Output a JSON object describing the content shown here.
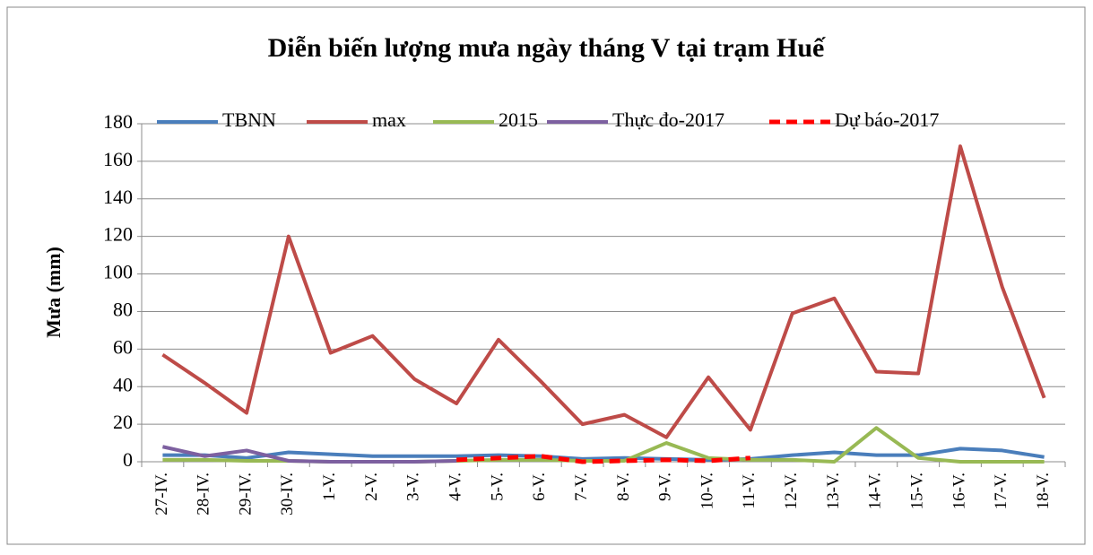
{
  "chart_data": {
    "type": "line",
    "title": "Diễn biến lượng mưa ngày tháng V tại trạm Huế",
    "y_label": "Mưa (mm)",
    "categories": [
      "27-IV.",
      "28-IV.",
      "29-IV.",
      "30-IV.",
      "1-V.",
      "2-V.",
      "3-V.",
      "4-V.",
      "5-V.",
      "6-V.",
      "7-V.",
      "8-V.",
      "9-V.",
      "10-V.",
      "11-V.",
      "12-V.",
      "13-V.",
      "14-V.",
      "15-V.",
      "16-V.",
      "17-V.",
      "18-V."
    ],
    "series": [
      {
        "name": "TBNN",
        "color": "#4a7ebb",
        "values": [
          3.5,
          3.5,
          2,
          5,
          4,
          3,
          3,
          3,
          3.5,
          3,
          1.5,
          2,
          1.5,
          1,
          1.5,
          3.5,
          5,
          3.5,
          3.5,
          7,
          6,
          2.5
        ]
      },
      {
        "name": "max",
        "color": "#be4b48",
        "values": [
          57,
          42,
          26,
          120,
          58,
          67,
          44,
          31,
          65,
          43,
          20,
          25,
          13,
          45,
          17,
          79,
          87,
          48,
          47,
          168,
          93,
          34
        ]
      },
      {
        "name": "2015",
        "color": "#98b954",
        "values": [
          1,
          1,
          0.5,
          0.5,
          0,
          0,
          0,
          0.5,
          1,
          1,
          0.5,
          0.5,
          10,
          2,
          1,
          1,
          0,
          18,
          2,
          0,
          0,
          0
        ]
      },
      {
        "name": "Thực đo-2017",
        "color": "#7d60a0",
        "values": [
          8,
          3,
          6,
          0.5,
          0,
          0,
          0,
          0.5,
          null,
          null,
          null,
          null,
          null,
          null,
          null,
          null,
          null,
          null,
          null,
          null,
          null,
          null
        ]
      },
      {
        "name": "Dự báo-2017",
        "color": "#ff0000",
        "dash": true,
        "values": [
          null,
          null,
          null,
          null,
          null,
          null,
          null,
          1,
          2,
          3,
          0,
          0.5,
          1,
          0.5,
          2,
          null,
          null,
          null,
          null,
          null,
          null,
          null
        ]
      }
    ],
    "ylim": [
      0,
      180
    ],
    "yticks": [
      0,
      20,
      40,
      60,
      80,
      100,
      120,
      140,
      160,
      180
    ],
    "grid": true
  }
}
